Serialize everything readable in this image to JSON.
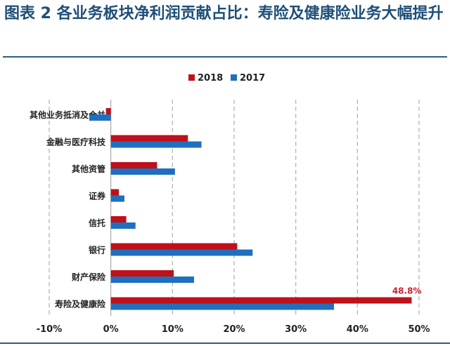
{
  "title": "图表 2 各业务板块净利润贡献占比：寿险及健康险业务大幅提升",
  "colors": {
    "title": "#1f4e79",
    "rule": "#2e5c8a"
  },
  "chart_data": {
    "type": "bar",
    "orientation": "horizontal",
    "categories": [
      "其他业务抵消及合并",
      "金融与医疗科技",
      "其他资管",
      "证券",
      "信托",
      "银行",
      "财产保险",
      "寿险及健康险"
    ],
    "series": [
      {
        "name": "2018",
        "color": "#c0101a",
        "values": [
          -0.8,
          12.5,
          7.5,
          1.3,
          2.5,
          20.5,
          10.2,
          48.8
        ]
      },
      {
        "name": "2017",
        "color": "#1f6fbf",
        "values": [
          -3.5,
          14.7,
          10.4,
          2.2,
          4.0,
          23.0,
          13.5,
          36.2
        ]
      }
    ],
    "xlim": [
      -10,
      50
    ],
    "xticks": [
      -10,
      0,
      10,
      20,
      30,
      40,
      50
    ],
    "tick_labels": [
      "-10%",
      "0%",
      "10%",
      "20%",
      "30%",
      "40%",
      "50%"
    ],
    "grid": "vertical dashed",
    "legend_position": "top",
    "annotations": [
      {
        "category": "寿险及健康险",
        "series": "2018",
        "text": "48.8%",
        "color": "#d0202a"
      }
    ]
  }
}
